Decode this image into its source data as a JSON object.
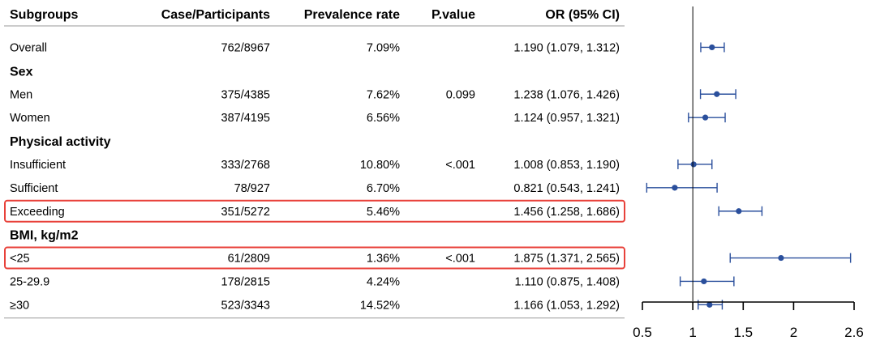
{
  "chart_data": {
    "type": "forest",
    "columns": [
      "Subgroups",
      "Case/Participants",
      "Prevalence rate",
      "P.value",
      "OR (95% CI)"
    ],
    "xaxis": {
      "ticks": [
        0.5,
        1,
        1.5,
        2,
        2.6
      ],
      "tick_labels": [
        "0.5",
        "1",
        "1.5",
        "2",
        "2.6"
      ],
      "reference": 1,
      "range": [
        0.5,
        2.6
      ]
    },
    "marker_color": "#2a4f9c",
    "highlight_color": "#e8413a",
    "rows": [
      {
        "kind": "data",
        "label": "Overall",
        "cases": "762/8967",
        "prevalence": "7.09%",
        "pvalue": "",
        "or_text": "1.190 (1.079, 1.312)",
        "or": 1.19,
        "lo": 1.079,
        "hi": 1.312,
        "highlight": false
      },
      {
        "kind": "group",
        "label": "Sex"
      },
      {
        "kind": "data",
        "label": "Men",
        "cases": "375/4385",
        "prevalence": "7.62%",
        "pvalue": "0.099",
        "or_text": "1.238 (1.076, 1.426)",
        "or": 1.238,
        "lo": 1.076,
        "hi": 1.426,
        "highlight": false
      },
      {
        "kind": "data",
        "label": "Women",
        "cases": "387/4195",
        "prevalence": "6.56%",
        "pvalue": "",
        "or_text": "1.124 (0.957, 1.321)",
        "or": 1.124,
        "lo": 0.957,
        "hi": 1.321,
        "highlight": false
      },
      {
        "kind": "group",
        "label": "Physical activity"
      },
      {
        "kind": "data",
        "label": "Insufficient",
        "cases": "333/2768",
        "prevalence": "10.80%",
        "pvalue": "<.001",
        "or_text": "1.008 (0.853, 1.190)",
        "or": 1.008,
        "lo": 0.853,
        "hi": 1.19,
        "highlight": false
      },
      {
        "kind": "data",
        "label": "Sufficient",
        "cases": "78/927",
        "prevalence": "6.70%",
        "pvalue": "",
        "or_text": "0.821 (0.543, 1.241)",
        "or": 0.821,
        "lo": 0.543,
        "hi": 1.241,
        "highlight": false
      },
      {
        "kind": "data",
        "label": "Exceeding",
        "cases": "351/5272",
        "prevalence": "5.46%",
        "pvalue": "",
        "or_text": "1.456 (1.258, 1.686)",
        "or": 1.456,
        "lo": 1.258,
        "hi": 1.686,
        "highlight": true
      },
      {
        "kind": "group",
        "label": "BMI, kg/m2"
      },
      {
        "kind": "data",
        "label": "<25",
        "cases": "61/2809",
        "prevalence": "1.36%",
        "pvalue": "<.001",
        "or_text": "1.875 (1.371, 2.565)",
        "or": 1.875,
        "lo": 1.371,
        "hi": 2.565,
        "highlight": true
      },
      {
        "kind": "data",
        "label": "25-29.9",
        "cases": "178/2815",
        "prevalence": "4.24%",
        "pvalue": "",
        "or_text": "1.110 (0.875, 1.408)",
        "or": 1.11,
        "lo": 0.875,
        "hi": 1.408,
        "highlight": false
      },
      {
        "kind": "data",
        "label": "≥30",
        "cases": "523/3343",
        "prevalence": "14.52%",
        "pvalue": "",
        "or_text": "1.166 (1.053, 1.292)",
        "or": 1.166,
        "lo": 1.053,
        "hi": 1.292,
        "highlight": false
      }
    ]
  }
}
